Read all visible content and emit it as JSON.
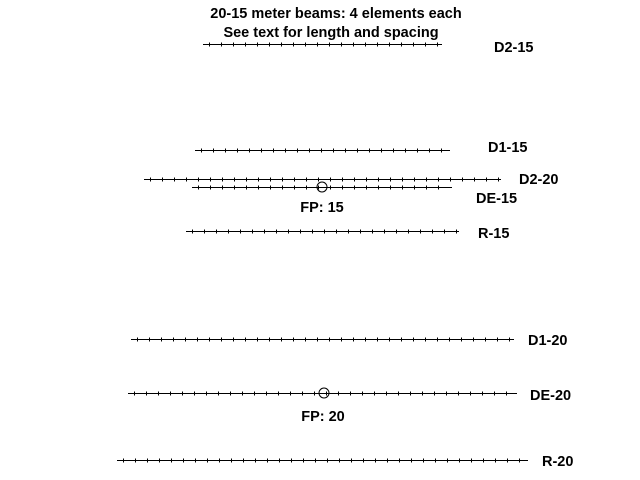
{
  "title": {
    "line1": "20-15 meter beams:  4 elements each",
    "line2": "See text for length and spacing"
  },
  "elements": [
    {
      "id": "d2-15",
      "label": "D2-15"
    },
    {
      "id": "d1-15",
      "label": "D1-15"
    },
    {
      "id": "d2-20",
      "label": "D2-20"
    },
    {
      "id": "de-15",
      "label": "DE-15",
      "feedpoint": true,
      "feedpoint_label": "FP: 15"
    },
    {
      "id": "r-15",
      "label": "R-15"
    },
    {
      "id": "d1-20",
      "label": "D1-20"
    },
    {
      "id": "de-20",
      "label": "DE-20",
      "feedpoint": true,
      "feedpoint_label": "FP: 20"
    },
    {
      "id": "r-20",
      "label": "R-20"
    }
  ],
  "colors": {
    "line": "#000000",
    "background": "#ffffff"
  }
}
